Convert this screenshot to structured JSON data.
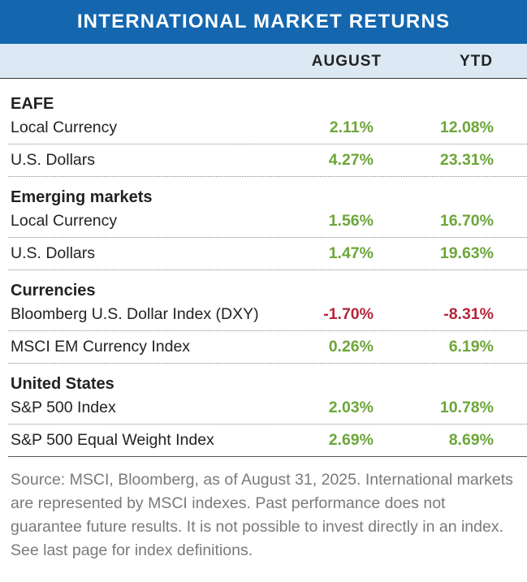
{
  "title": "INTERNATIONAL MARKET RETURNS",
  "columns": {
    "col1": "AUGUST",
    "col2": "YTD"
  },
  "groups": [
    {
      "name": "EAFE",
      "rows": [
        {
          "label": "Local Currency",
          "august": "2.11%",
          "ytd": "12.08%"
        },
        {
          "label": "U.S. Dollars",
          "august": "4.27%",
          "ytd": "23.31%"
        }
      ]
    },
    {
      "name": "Emerging markets",
      "rows": [
        {
          "label": "Local Currency",
          "august": "1.56%",
          "ytd": "16.70%"
        },
        {
          "label": "U.S. Dollars",
          "august": "1.47%",
          "ytd": "19.63%"
        }
      ]
    },
    {
      "name": "Currencies",
      "rows": [
        {
          "label": "Bloomberg U.S. Dollar Index (DXY)",
          "august": "-1.70%",
          "ytd": "-8.31%"
        },
        {
          "label": "MSCI EM Currency Index",
          "august": "0.26%",
          "ytd": "6.19%"
        }
      ]
    },
    {
      "name": "United States",
      "rows": [
        {
          "label": "S&P 500 Index",
          "august": "2.03%",
          "ytd": "10.78%"
        },
        {
          "label": "S&P 500 Equal Weight Index",
          "august": "2.69%",
          "ytd": "8.69%"
        }
      ]
    }
  ],
  "source_note": "Source: MSCI, Bloomberg, as of August 31, 2025. International markets are  represented by MSCI indexes. Past performance does not guarantee future results. It is not possible to invest directly in an index. See last page for index definitions.",
  "colors": {
    "header_bg": "#1466ae",
    "subheader_bg": "#dce8f3",
    "positive": "#6da63a",
    "negative": "#b4263b"
  }
}
